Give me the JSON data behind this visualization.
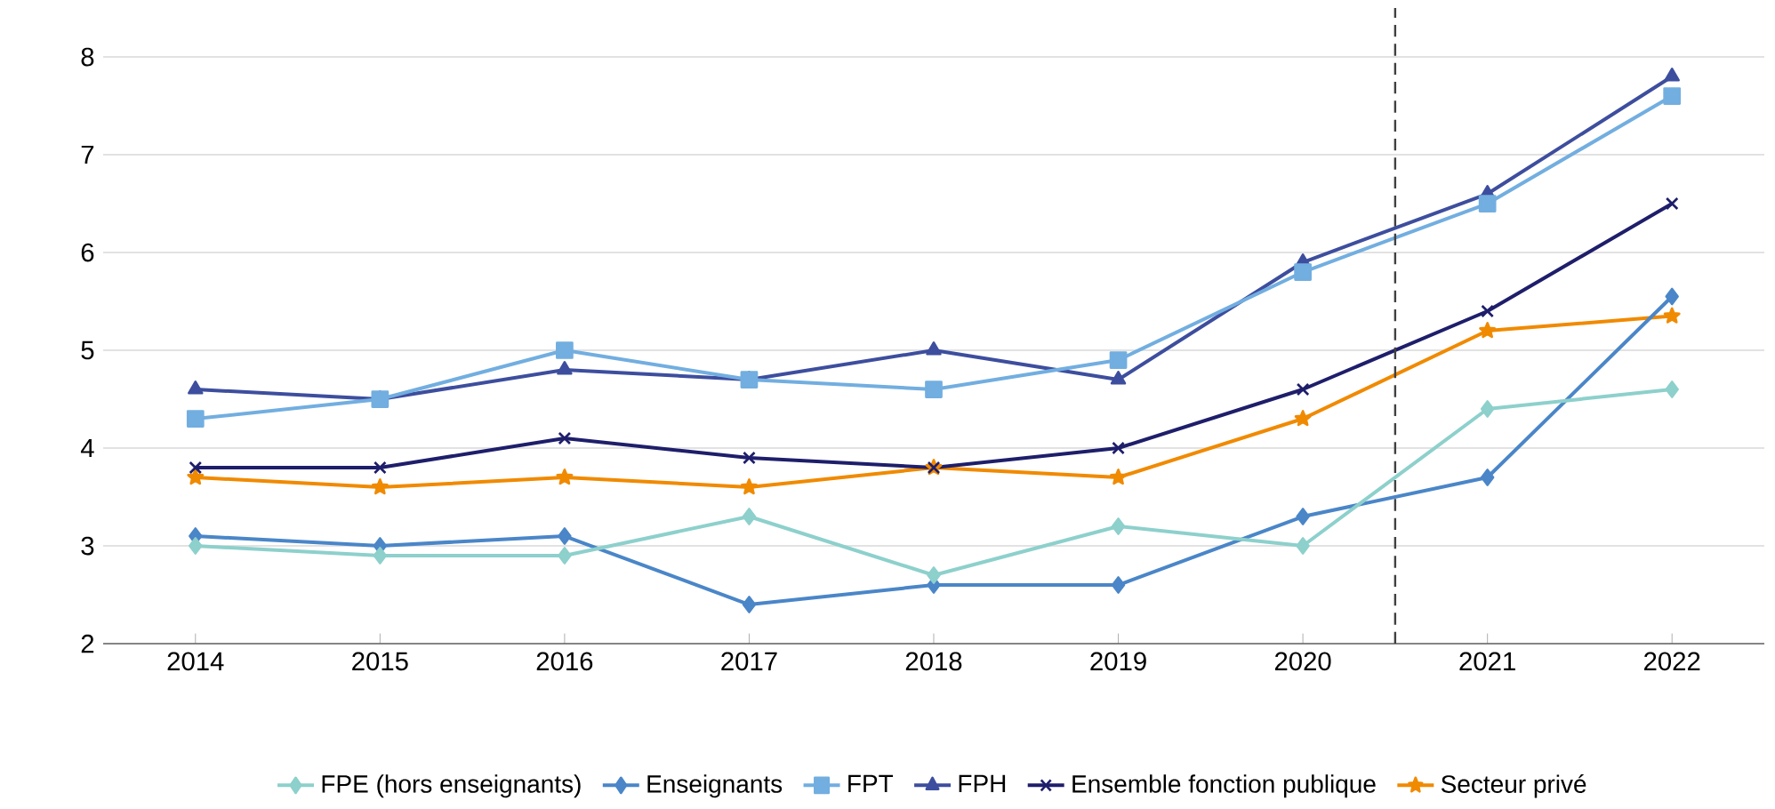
{
  "chart_data": {
    "type": "line",
    "x": [
      2014,
      2015,
      2016,
      2017,
      2018,
      2019,
      2020,
      2021,
      2022
    ],
    "xlim": [
      2013.5,
      2022.5
    ],
    "xticks": [
      2014,
      2015,
      2016,
      2017,
      2018,
      2019,
      2020,
      2021,
      2022
    ],
    "ylim": [
      2,
      8.5
    ],
    "yticks": [
      2,
      3,
      4,
      5,
      6,
      7,
      8
    ],
    "grid": "y",
    "legend": "bottom",
    "line_style": "solid",
    "ref_lines": [
      {
        "axis": "x",
        "value": 2020.5,
        "color": "#404040",
        "line_style": "dashed"
      }
    ],
    "series": [
      {
        "name": "FPE (hors enseignants)",
        "color": "#8dd0cc",
        "marker": "diamond",
        "values": [
          3.0,
          2.9,
          2.9,
          3.3,
          2.7,
          3.2,
          3.0,
          4.4,
          4.6
        ]
      },
      {
        "name": "Enseignants",
        "color": "#4a86c8",
        "marker": "diamond",
        "values": [
          3.1,
          3.0,
          3.1,
          2.4,
          2.6,
          2.6,
          3.3,
          3.7,
          5.55
        ]
      },
      {
        "name": "FPT",
        "color": "#72aee0",
        "marker": "square",
        "values": [
          4.3,
          4.5,
          5.0,
          4.7,
          4.6,
          4.9,
          5.8,
          6.5,
          7.6
        ]
      },
      {
        "name": "FPH",
        "color": "#3d4e9e",
        "marker": "triangle",
        "values": [
          4.6,
          4.5,
          4.8,
          4.7,
          5.0,
          4.7,
          5.9,
          6.6,
          7.8
        ]
      },
      {
        "name": "Ensemble fonction publique",
        "color": "#1e1e6b",
        "marker": "cross",
        "values": [
          3.8,
          3.8,
          4.1,
          3.9,
          3.8,
          4.0,
          4.6,
          5.4,
          6.5
        ]
      },
      {
        "name": "Secteur privé",
        "color": "#f08a00",
        "marker": "star",
        "values": [
          3.7,
          3.6,
          3.7,
          3.6,
          3.8,
          3.7,
          4.3,
          5.2,
          5.35
        ]
      }
    ]
  }
}
